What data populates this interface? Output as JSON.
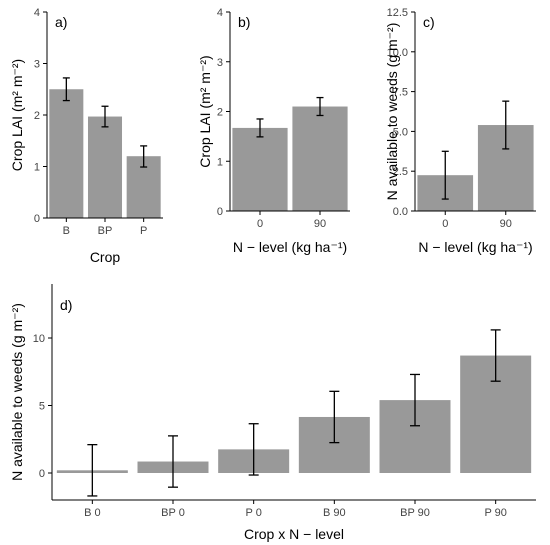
{
  "chart_data": [
    {
      "panel": "a)",
      "type": "bar",
      "categories": [
        "B",
        "BP",
        "P"
      ],
      "values": [
        2.5,
        1.97,
        1.2
      ],
      "errors": [
        [
          2.28,
          2.72
        ],
        [
          1.77,
          2.17
        ],
        [
          0.99,
          1.4
        ]
      ],
      "xlabel": "Crop",
      "ylabel": "Crop LAI (m² m⁻²)",
      "ylim": [
        0,
        4
      ],
      "yticks": [
        "0",
        "1",
        "2",
        "3",
        "4"
      ],
      "grid": false
    },
    {
      "panel": "b)",
      "type": "bar",
      "categories": [
        "0",
        "90"
      ],
      "values": [
        1.67,
        2.1
      ],
      "errors": [
        [
          1.49,
          1.85
        ],
        [
          1.92,
          2.28
        ]
      ],
      "xlabel": "N − level (kg ha⁻¹)",
      "ylabel": "Crop LAI (m² m⁻²)",
      "ylim": [
        0,
        4
      ],
      "yticks": [
        "0",
        "1",
        "2",
        "3",
        "4"
      ],
      "grid": false
    },
    {
      "panel": "c)",
      "type": "bar",
      "categories": [
        "0",
        "90"
      ],
      "values": [
        2.25,
        5.4
      ],
      "errors": [
        [
          0.75,
          3.75
        ],
        [
          3.9,
          6.9
        ]
      ],
      "xlabel": "N − level (kg ha⁻¹)",
      "ylabel": "N available to weeds (g m⁻²)",
      "ylim": [
        0,
        12.5
      ],
      "yticks": [
        "0.0",
        "2.5",
        "5.0",
        "7.5",
        "10.0",
        "12.5"
      ],
      "grid": false
    },
    {
      "panel": "d)",
      "type": "bar",
      "categories": [
        "B 0",
        "BP 0",
        "P 0",
        "B 90",
        "BP 90",
        "P 90"
      ],
      "values": [
        0.2,
        0.85,
        1.75,
        4.15,
        5.4,
        8.7
      ],
      "errors": [
        [
          -1.7,
          2.1
        ],
        [
          -1.05,
          2.75
        ],
        [
          -0.15,
          3.65
        ],
        [
          2.25,
          6.05
        ],
        [
          3.5,
          7.3
        ],
        [
          6.8,
          10.6
        ]
      ],
      "xlabel": "Crop x N − level",
      "ylabel": "N available to weeds (g m⁻²)",
      "ylim": [
        -2,
        14
      ],
      "yticks": [
        "0",
        "5",
        "10"
      ],
      "grid": false
    }
  ]
}
